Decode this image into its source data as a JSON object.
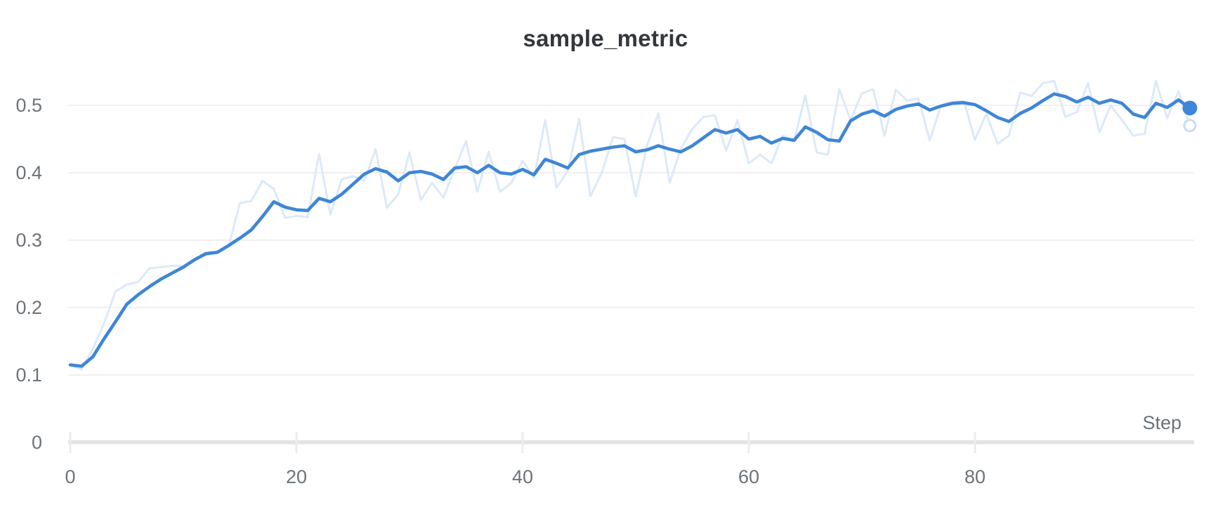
{
  "chart_data": {
    "type": "line",
    "title": "sample_metric",
    "xlabel": "Step",
    "ylabel": "",
    "grid": true,
    "legend_position": "none",
    "xlim": [
      0,
      99
    ],
    "ylim": [
      0,
      0.55
    ],
    "x_axis": {
      "label": "Step",
      "ticks": [
        0,
        20,
        40,
        60,
        80
      ]
    },
    "y_axis": {
      "ticks": [
        0,
        0.1,
        0.2,
        0.3,
        0.4,
        0.5
      ]
    },
    "colors": {
      "smoothed": "#3e86d6",
      "raw": "#dce9f8",
      "raw_marker_ring": "#c9ddf4",
      "gridline": "#e7e7e8",
      "axis_bar": "#e3e3e5",
      "label_gray": "#6d737a",
      "title_dark": "#33373c"
    },
    "x": [
      0,
      1,
      2,
      3,
      4,
      5,
      6,
      7,
      8,
      9,
      10,
      11,
      12,
      13,
      14,
      15,
      16,
      17,
      18,
      19,
      20,
      21,
      22,
      23,
      24,
      25,
      26,
      27,
      28,
      29,
      30,
      31,
      32,
      33,
      34,
      35,
      36,
      37,
      38,
      39,
      40,
      41,
      42,
      43,
      44,
      45,
      46,
      47,
      48,
      49,
      50,
      51,
      52,
      53,
      54,
      55,
      56,
      57,
      58,
      59,
      60,
      61,
      62,
      63,
      64,
      65,
      66,
      67,
      68,
      69,
      70,
      71,
      72,
      73,
      74,
      75,
      76,
      77,
      78,
      79,
      80,
      81,
      82,
      83,
      84,
      85,
      86,
      87,
      88,
      89,
      90,
      91,
      92,
      93,
      94,
      95,
      96,
      97,
      98,
      99
    ],
    "series": [
      {
        "name": "raw",
        "color": "#dce9f8",
        "values": [
          0.115,
          0.108,
          0.139,
          0.177,
          0.224,
          0.234,
          0.238,
          0.258,
          0.26,
          0.262,
          0.262,
          0.272,
          0.278,
          0.281,
          0.29,
          0.355,
          0.358,
          0.388,
          0.376,
          0.333,
          0.336,
          0.334,
          0.428,
          0.338,
          0.39,
          0.395,
          0.388,
          0.435,
          0.348,
          0.368,
          0.43,
          0.36,
          0.385,
          0.363,
          0.406,
          0.447,
          0.372,
          0.431,
          0.372,
          0.385,
          0.418,
          0.392,
          0.478,
          0.378,
          0.403,
          0.48,
          0.365,
          0.4,
          0.453,
          0.45,
          0.365,
          0.44,
          0.488,
          0.385,
          0.436,
          0.465,
          0.483,
          0.485,
          0.433,
          0.478,
          0.414,
          0.427,
          0.414,
          0.455,
          0.448,
          0.514,
          0.43,
          0.427,
          0.524,
          0.478,
          0.518,
          0.524,
          0.455,
          0.523,
          0.507,
          0.51,
          0.448,
          0.5,
          0.505,
          0.507,
          0.449,
          0.487,
          0.443,
          0.455,
          0.519,
          0.514,
          0.533,
          0.536,
          0.483,
          0.49,
          0.533,
          0.46,
          0.5,
          0.478,
          0.455,
          0.458,
          0.536,
          0.481,
          0.521,
          0.47
        ]
      },
      {
        "name": "smoothed",
        "color": "#3e86d6",
        "values": [
          0.115,
          0.113,
          0.127,
          0.154,
          0.179,
          0.205,
          0.219,
          0.231,
          0.242,
          0.251,
          0.26,
          0.271,
          0.28,
          0.282,
          0.292,
          0.303,
          0.315,
          0.335,
          0.357,
          0.349,
          0.345,
          0.344,
          0.362,
          0.357,
          0.368,
          0.383,
          0.398,
          0.406,
          0.401,
          0.388,
          0.4,
          0.402,
          0.398,
          0.39,
          0.407,
          0.409,
          0.4,
          0.411,
          0.4,
          0.398,
          0.405,
          0.397,
          0.42,
          0.414,
          0.407,
          0.427,
          0.432,
          0.435,
          0.438,
          0.44,
          0.431,
          0.434,
          0.44,
          0.435,
          0.431,
          0.44,
          0.452,
          0.464,
          0.459,
          0.464,
          0.45,
          0.454,
          0.444,
          0.451,
          0.448,
          0.468,
          0.46,
          0.449,
          0.447,
          0.477,
          0.487,
          0.492,
          0.484,
          0.494,
          0.499,
          0.502,
          0.493,
          0.499,
          0.503,
          0.504,
          0.501,
          0.492,
          0.482,
          0.476,
          0.488,
          0.496,
          0.507,
          0.517,
          0.513,
          0.505,
          0.512,
          0.503,
          0.508,
          0.503,
          0.487,
          0.482,
          0.503,
          0.497,
          0.508,
          0.496
        ]
      }
    ],
    "endpoint_markers": {
      "smoothed_value": 0.496,
      "raw_value": 0.47,
      "step": 99
    }
  }
}
